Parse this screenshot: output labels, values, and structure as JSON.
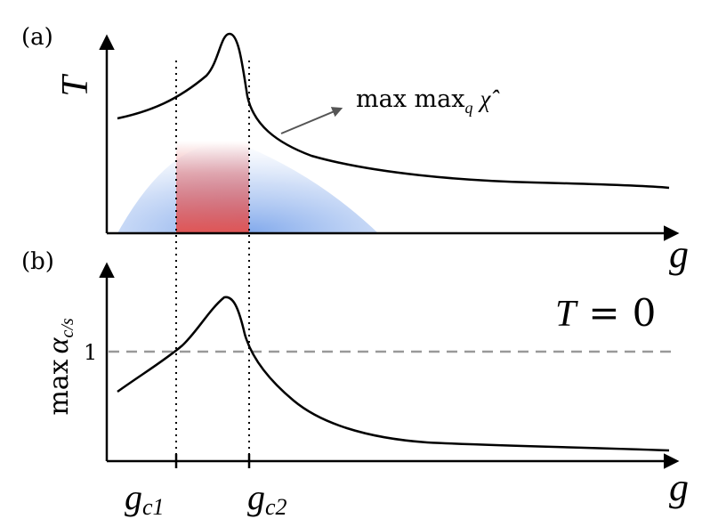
{
  "panel_a": {
    "label": "(a)",
    "y_axis_label": "T",
    "x_axis_label": "g",
    "annotation_prefix": "max max",
    "annotation_subscript": "q",
    "annotation_symbol": "χ̂",
    "region_colors": {
      "red": "#e05555",
      "blue": "#7ea6ea"
    }
  },
  "panel_b": {
    "label": "(b)",
    "y_axis_label_prefix": "max",
    "y_axis_label_symbol": "α",
    "y_axis_label_subscript": "c/s",
    "reference_tick": "1",
    "condition_lhs": "T",
    "condition_op": "=",
    "condition_rhs": "0",
    "x_axis_label": "g",
    "tick_gc1": "g",
    "tick_gc1_sub": "c1",
    "tick_gc2": "g",
    "tick_gc2_sub": "c2"
  },
  "colors": {
    "curve": "#000000",
    "dashed": "#999999",
    "arrow": "#555555"
  }
}
